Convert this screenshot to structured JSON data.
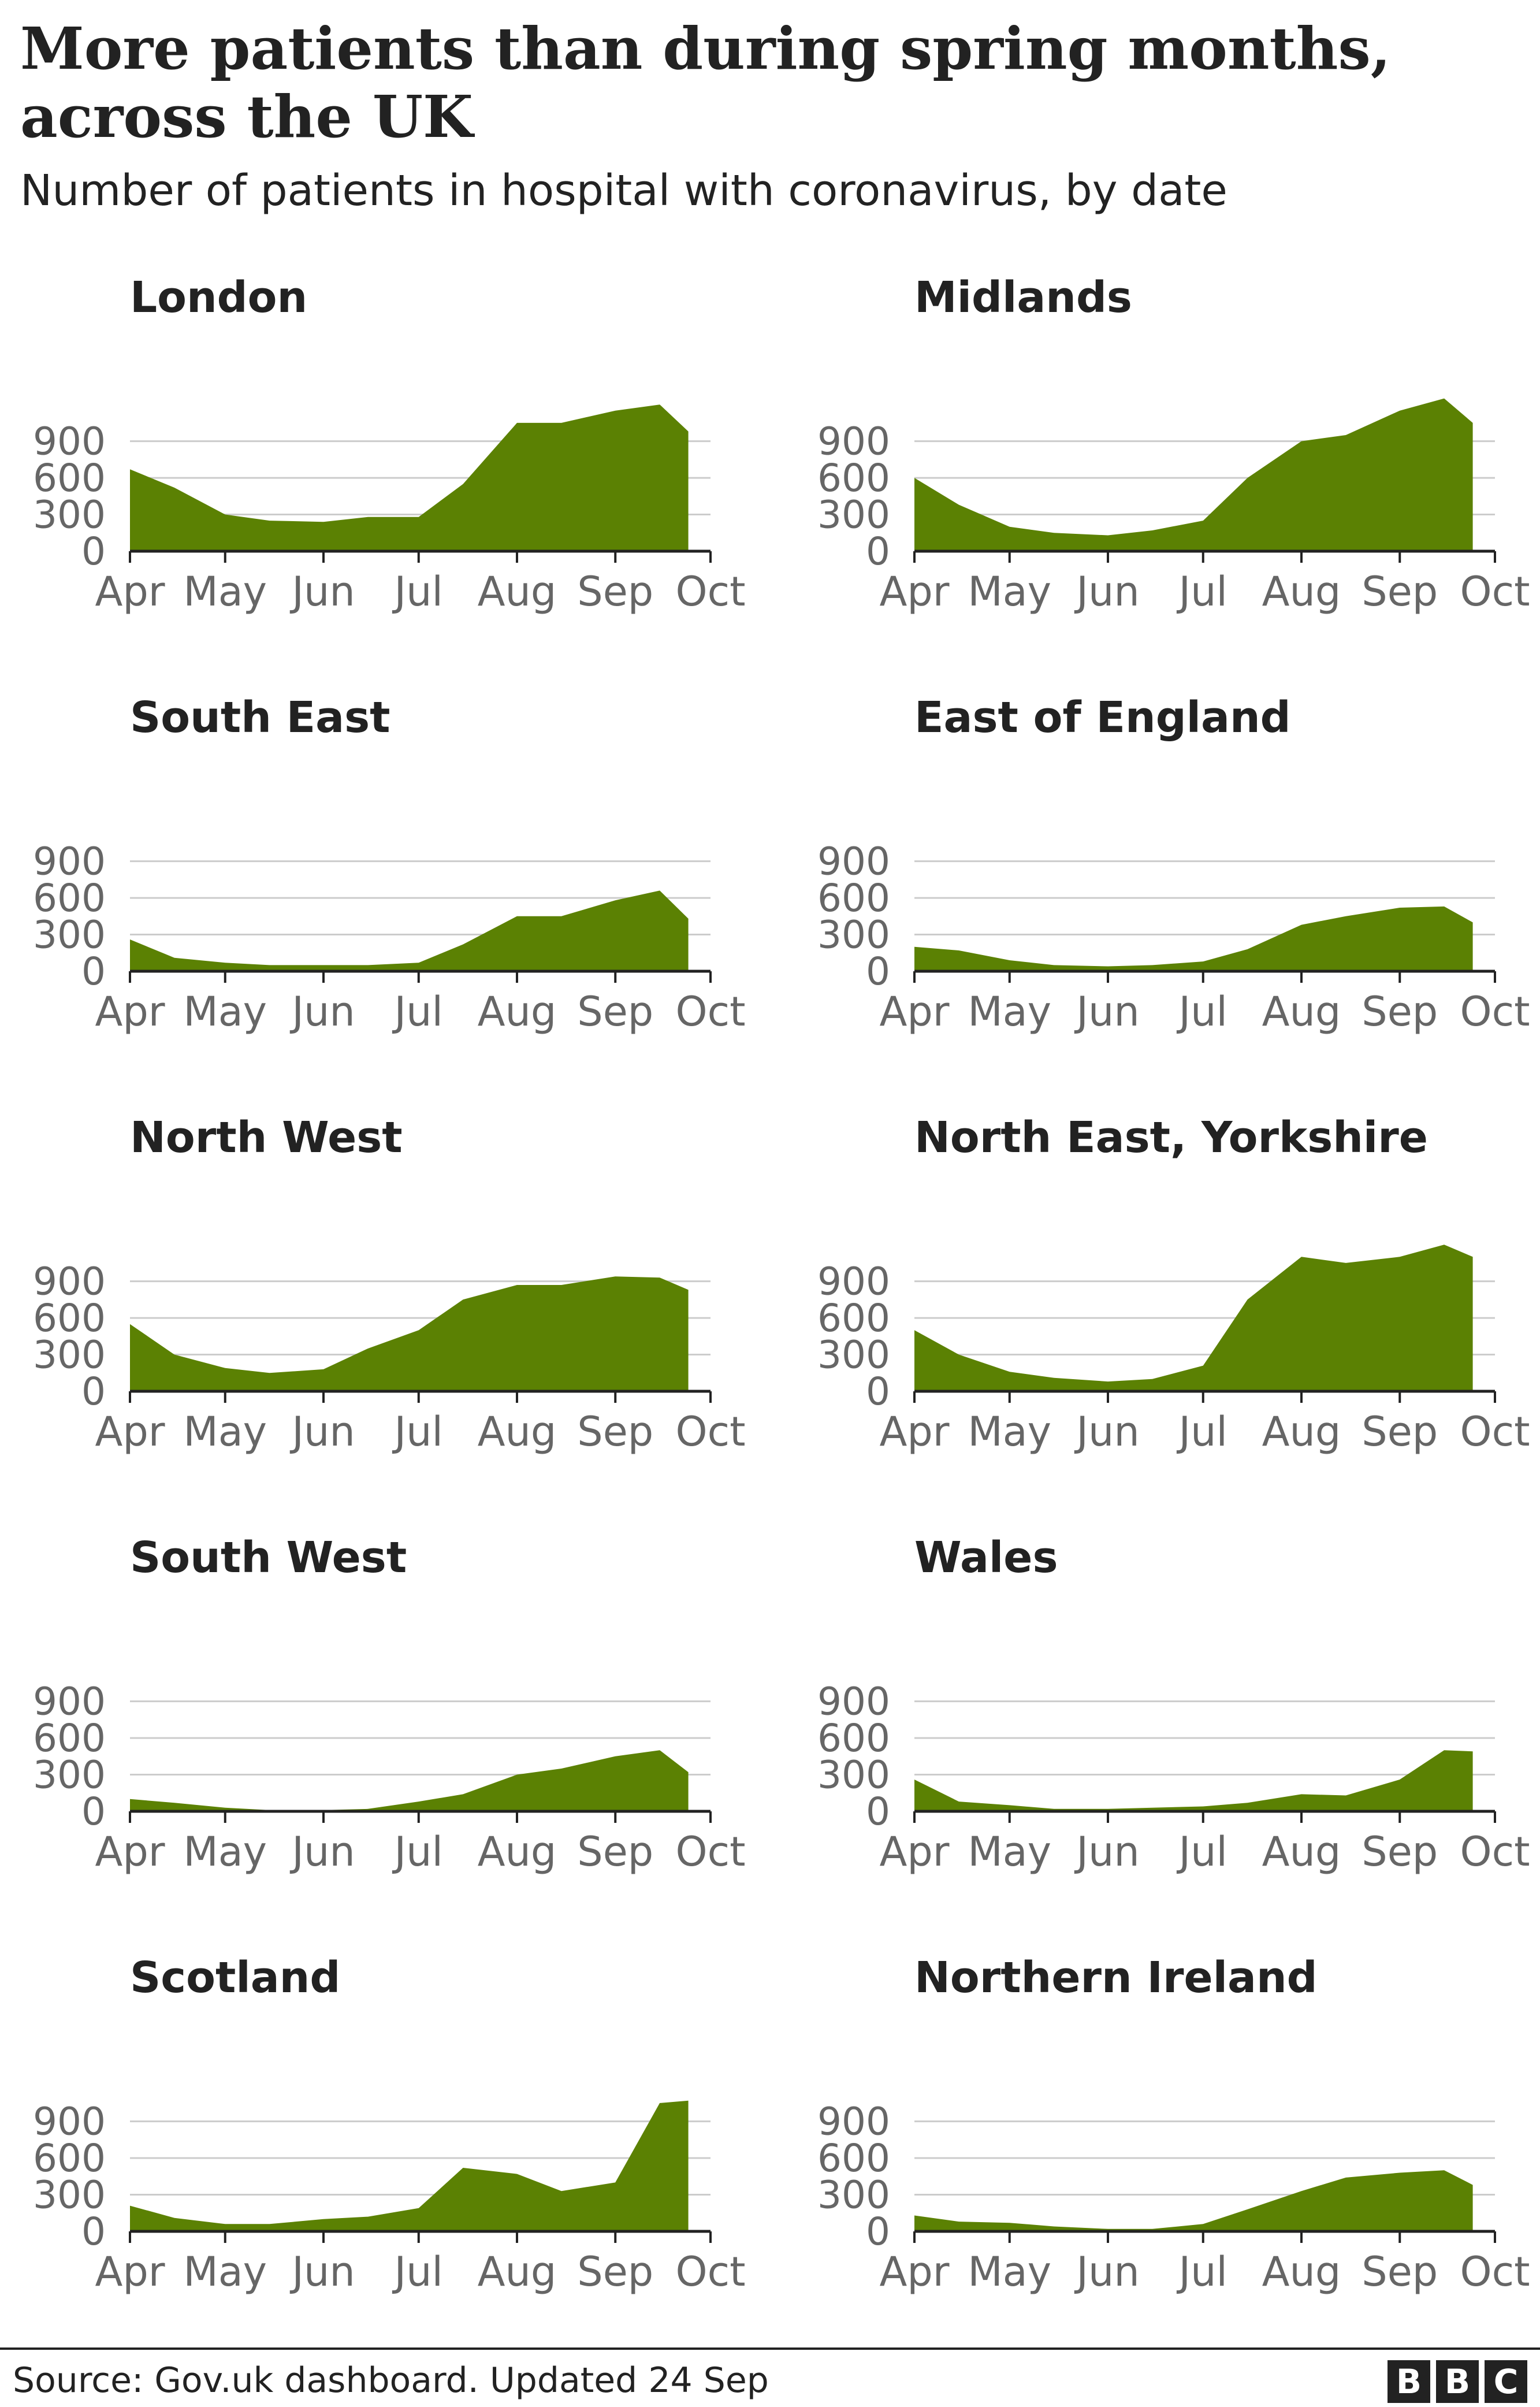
{
  "title": "More patients than during spring months, across the UK",
  "subtitle": "Number of patients in hospital with coronavirus, by date",
  "source": "Source: Gov.uk dashboard. Updated 24 Sep",
  "logo": [
    "B",
    "B",
    "C"
  ],
  "colors": {
    "area": "#5b8103",
    "grid": "#cccccc",
    "axis": "#222222",
    "tick_text": "#666666"
  },
  "chart_data": [
    {
      "type": "area",
      "title": "London",
      "x_tick_labels": [
        "Apr",
        "May",
        "Jun",
        "Jul",
        "Aug",
        "Sep",
        "Oct"
      ],
      "y_ticks": [
        0,
        300,
        600,
        900
      ],
      "ylim": [
        0,
        1300
      ],
      "xlim": [
        "2020-04-01",
        "2020-10-01"
      ],
      "x": [
        "2020-04-01",
        "2020-04-15",
        "2020-05-01",
        "2020-05-15",
        "2020-06-01",
        "2020-06-15",
        "2020-07-01",
        "2020-07-15",
        "2020-08-01",
        "2020-08-15",
        "2020-09-01",
        "2020-09-15",
        "2020-09-24"
      ],
      "values": [
        670,
        520,
        300,
        250,
        240,
        280,
        280,
        550,
        1050,
        1050,
        1150,
        1200,
        980
      ]
    },
    {
      "type": "area",
      "title": "Midlands",
      "x_tick_labels": [
        "Apr",
        "May",
        "Jun",
        "Jul",
        "Aug",
        "Sep",
        "Oct"
      ],
      "y_ticks": [
        0,
        300,
        600,
        900
      ],
      "ylim": [
        0,
        1300
      ],
      "xlim": [
        "2020-04-01",
        "2020-10-01"
      ],
      "x": [
        "2020-04-01",
        "2020-04-15",
        "2020-05-01",
        "2020-05-15",
        "2020-06-01",
        "2020-06-15",
        "2020-07-01",
        "2020-07-15",
        "2020-08-01",
        "2020-08-15",
        "2020-09-01",
        "2020-09-15",
        "2020-09-24"
      ],
      "values": [
        600,
        380,
        200,
        150,
        130,
        170,
        250,
        600,
        900,
        950,
        1150,
        1250,
        1050
      ]
    },
    {
      "type": "area",
      "title": "South East",
      "x_tick_labels": [
        "Apr",
        "May",
        "Jun",
        "Jul",
        "Aug",
        "Sep",
        "Oct"
      ],
      "y_ticks": [
        0,
        300,
        600,
        900
      ],
      "ylim": [
        0,
        1300
      ],
      "xlim": [
        "2020-04-01",
        "2020-10-01"
      ],
      "x": [
        "2020-04-01",
        "2020-04-15",
        "2020-05-01",
        "2020-05-15",
        "2020-06-01",
        "2020-06-15",
        "2020-07-01",
        "2020-07-15",
        "2020-08-01",
        "2020-08-15",
        "2020-09-01",
        "2020-09-15",
        "2020-09-24"
      ],
      "values": [
        260,
        110,
        70,
        50,
        50,
        50,
        70,
        220,
        450,
        450,
        580,
        660,
        430
      ]
    },
    {
      "type": "area",
      "title": "East of England",
      "x_tick_labels": [
        "Apr",
        "May",
        "Jun",
        "Jul",
        "Aug",
        "Sep",
        "Oct"
      ],
      "y_ticks": [
        0,
        300,
        600,
        900
      ],
      "ylim": [
        0,
        1300
      ],
      "xlim": [
        "2020-04-01",
        "2020-10-01"
      ],
      "x": [
        "2020-04-01",
        "2020-04-15",
        "2020-05-01",
        "2020-05-15",
        "2020-06-01",
        "2020-06-15",
        "2020-07-01",
        "2020-07-15",
        "2020-08-01",
        "2020-08-15",
        "2020-09-01",
        "2020-09-15",
        "2020-09-24"
      ],
      "values": [
        200,
        170,
        90,
        50,
        40,
        50,
        80,
        180,
        380,
        450,
        520,
        530,
        400
      ]
    },
    {
      "type": "area",
      "title": "North West",
      "x_tick_labels": [
        "Apr",
        "May",
        "Jun",
        "Jul",
        "Aug",
        "Sep",
        "Oct"
      ],
      "y_ticks": [
        0,
        300,
        600,
        900
      ],
      "ylim": [
        0,
        1300
      ],
      "xlim": [
        "2020-04-01",
        "2020-10-01"
      ],
      "x": [
        "2020-04-01",
        "2020-04-15",
        "2020-05-01",
        "2020-05-15",
        "2020-06-01",
        "2020-06-15",
        "2020-07-01",
        "2020-07-15",
        "2020-08-01",
        "2020-08-15",
        "2020-09-01",
        "2020-09-15",
        "2020-09-24"
      ],
      "values": [
        550,
        300,
        190,
        150,
        180,
        350,
        500,
        750,
        870,
        870,
        940,
        930,
        830
      ]
    },
    {
      "type": "area",
      "title": "North East, Yorkshire",
      "x_tick_labels": [
        "Apr",
        "May",
        "Jun",
        "Jul",
        "Aug",
        "Sep",
        "Oct"
      ],
      "y_ticks": [
        0,
        300,
        600,
        900
      ],
      "ylim": [
        0,
        1300
      ],
      "xlim": [
        "2020-04-01",
        "2020-10-01"
      ],
      "x": [
        "2020-04-01",
        "2020-04-15",
        "2020-05-01",
        "2020-05-15",
        "2020-06-01",
        "2020-06-15",
        "2020-07-01",
        "2020-07-15",
        "2020-08-01",
        "2020-08-15",
        "2020-09-01",
        "2020-09-15",
        "2020-09-24"
      ],
      "values": [
        500,
        300,
        160,
        110,
        80,
        100,
        210,
        750,
        1100,
        1050,
        1100,
        1200,
        1100
      ]
    },
    {
      "type": "area",
      "title": "South West",
      "x_tick_labels": [
        "Apr",
        "May",
        "Jun",
        "Jul",
        "Aug",
        "Sep",
        "Oct"
      ],
      "y_ticks": [
        0,
        300,
        600,
        900
      ],
      "ylim": [
        0,
        1300
      ],
      "xlim": [
        "2020-04-01",
        "2020-10-01"
      ],
      "x": [
        "2020-04-01",
        "2020-04-15",
        "2020-05-01",
        "2020-05-15",
        "2020-06-01",
        "2020-06-15",
        "2020-07-01",
        "2020-07-15",
        "2020-08-01",
        "2020-08-15",
        "2020-09-01",
        "2020-09-15",
        "2020-09-24"
      ],
      "values": [
        100,
        70,
        30,
        10,
        10,
        20,
        80,
        140,
        300,
        350,
        450,
        500,
        320
      ]
    },
    {
      "type": "area",
      "title": "Wales",
      "x_tick_labels": [
        "Apr",
        "May",
        "Jun",
        "Jul",
        "Aug",
        "Sep",
        "Oct"
      ],
      "y_ticks": [
        0,
        300,
        600,
        900
      ],
      "ylim": [
        0,
        1300
      ],
      "xlim": [
        "2020-04-01",
        "2020-10-01"
      ],
      "x": [
        "2020-04-01",
        "2020-04-15",
        "2020-05-01",
        "2020-05-15",
        "2020-06-01",
        "2020-06-15",
        "2020-07-01",
        "2020-07-15",
        "2020-08-01",
        "2020-08-15",
        "2020-09-01",
        "2020-09-15",
        "2020-09-24"
      ],
      "values": [
        260,
        80,
        50,
        20,
        20,
        30,
        40,
        70,
        140,
        130,
        260,
        500,
        490
      ]
    },
    {
      "type": "area",
      "title": "Scotland",
      "x_tick_labels": [
        "Apr",
        "May",
        "Jun",
        "Jul",
        "Aug",
        "Sep",
        "Oct"
      ],
      "y_ticks": [
        0,
        300,
        600,
        900
      ],
      "ylim": [
        0,
        1300
      ],
      "xlim": [
        "2020-04-01",
        "2020-10-01"
      ],
      "x": [
        "2020-04-01",
        "2020-04-15",
        "2020-05-01",
        "2020-05-15",
        "2020-06-01",
        "2020-06-15",
        "2020-07-01",
        "2020-07-15",
        "2020-08-01",
        "2020-08-15",
        "2020-09-01",
        "2020-09-15",
        "2020-09-24"
      ],
      "values": [
        210,
        110,
        60,
        60,
        100,
        120,
        190,
        520,
        470,
        330,
        400,
        1050,
        1070
      ]
    },
    {
      "type": "area",
      "title": "Northern Ireland",
      "x_tick_labels": [
        "Apr",
        "May",
        "Jun",
        "Jul",
        "Aug",
        "Sep",
        "Oct"
      ],
      "y_ticks": [
        0,
        300,
        600,
        900
      ],
      "ylim": [
        0,
        1300
      ],
      "xlim": [
        "2020-04-01",
        "2020-10-01"
      ],
      "x": [
        "2020-04-01",
        "2020-04-15",
        "2020-05-01",
        "2020-05-15",
        "2020-06-01",
        "2020-06-15",
        "2020-07-01",
        "2020-07-15",
        "2020-08-01",
        "2020-08-15",
        "2020-09-01",
        "2020-09-15",
        "2020-09-24"
      ],
      "values": [
        130,
        80,
        70,
        40,
        20,
        20,
        60,
        180,
        330,
        440,
        480,
        500,
        380
      ]
    }
  ]
}
